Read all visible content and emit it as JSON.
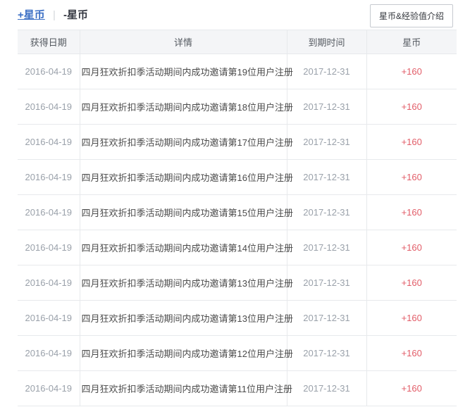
{
  "page": {
    "tabs": [
      {
        "label": "+星币",
        "active": true
      },
      {
        "label": "-星币",
        "active": false
      }
    ],
    "tab_separator": "|",
    "info_button_label": "星币&经验值介绍"
  },
  "colors": {
    "accent_blue": "#3d70c5",
    "coins_red": "#e25d68",
    "muted_gray": "#9aa1aa",
    "header_bg": "#f4f5f7",
    "border": "#e7e9ec"
  },
  "table": {
    "headers": [
      "获得日期",
      "详情",
      "到期时间",
      "星币"
    ],
    "rows": [
      {
        "date": "2016-04-19",
        "detail": "四月狂欢折扣季活动期间内成功邀请第19位用户注册",
        "expiry": "2017-12-31",
        "coins": "+160"
      },
      {
        "date": "2016-04-19",
        "detail": "四月狂欢折扣季活动期间内成功邀请第18位用户注册",
        "expiry": "2017-12-31",
        "coins": "+160"
      },
      {
        "date": "2016-04-19",
        "detail": "四月狂欢折扣季活动期间内成功邀请第17位用户注册",
        "expiry": "2017-12-31",
        "coins": "+160"
      },
      {
        "date": "2016-04-19",
        "detail": "四月狂欢折扣季活动期间内成功邀请第16位用户注册",
        "expiry": "2017-12-31",
        "coins": "+160"
      },
      {
        "date": "2016-04-19",
        "detail": "四月狂欢折扣季活动期间内成功邀请第15位用户注册",
        "expiry": "2017-12-31",
        "coins": "+160"
      },
      {
        "date": "2016-04-19",
        "detail": "四月狂欢折扣季活动期间内成功邀请第14位用户注册",
        "expiry": "2017-12-31",
        "coins": "+160"
      },
      {
        "date": "2016-04-19",
        "detail": "四月狂欢折扣季活动期间内成功邀请第13位用户注册",
        "expiry": "2017-12-31",
        "coins": "+160"
      },
      {
        "date": "2016-04-19",
        "detail": "四月狂欢折扣季活动期间内成功邀请第13位用户注册",
        "expiry": "2017-12-31",
        "coins": "+160"
      },
      {
        "date": "2016-04-19",
        "detail": "四月狂欢折扣季活动期间内成功邀请第12位用户注册",
        "expiry": "2017-12-31",
        "coins": "+160"
      },
      {
        "date": "2016-04-19",
        "detail": "四月狂欢折扣季活动期间内成功邀请第11位用户注册",
        "expiry": "2017-12-31",
        "coins": "+160"
      }
    ]
  }
}
